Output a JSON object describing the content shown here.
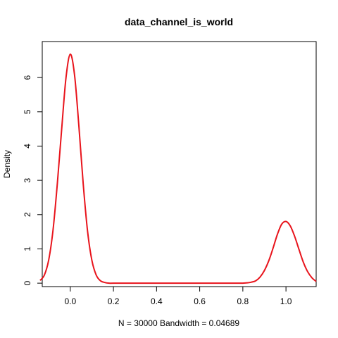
{
  "chart_data": {
    "type": "line",
    "title": "data_channel_is_world",
    "xlabel": "N = 30000   Bandwidth = 0.04689",
    "ylabel": "Density",
    "xlim": [
      -0.13,
      1.14
    ],
    "ylim": [
      -0.1,
      7.05
    ],
    "x_ticks": [
      0.0,
      0.2,
      0.4,
      0.6,
      0.8,
      1.0
    ],
    "x_tick_labels": [
      "0.0",
      "0.2",
      "0.4",
      "0.6",
      "0.8",
      "1.0"
    ],
    "y_ticks": [
      0,
      1,
      2,
      3,
      4,
      5,
      6
    ],
    "y_tick_labels": [
      "0",
      "1",
      "2",
      "3",
      "4",
      "5",
      "6"
    ],
    "grid": false,
    "series": [
      {
        "color": "#e8141c",
        "x": [
          -0.14,
          -0.12,
          -0.1,
          -0.08,
          -0.06,
          -0.04,
          -0.02,
          0.0,
          0.02,
          0.04,
          0.06,
          0.08,
          0.1,
          0.12,
          0.14,
          0.16,
          0.18,
          0.2,
          0.3,
          0.4,
          0.5,
          0.6,
          0.7,
          0.78,
          0.8,
          0.82,
          0.84,
          0.86,
          0.88,
          0.9,
          0.92,
          0.94,
          0.96,
          0.98,
          1.0,
          1.02,
          1.04,
          1.06,
          1.08,
          1.1,
          1.12,
          1.14
        ],
        "y": [
          0.08,
          0.24,
          0.68,
          1.55,
          2.91,
          4.49,
          5.99,
          6.68,
          6.06,
          4.57,
          2.89,
          1.52,
          0.67,
          0.24,
          0.07,
          0.02,
          0.0,
          0.0,
          0.0,
          0.0,
          0.0,
          0.0,
          0.0,
          0.0,
          0.0,
          0.01,
          0.03,
          0.07,
          0.18,
          0.37,
          0.65,
          1.02,
          1.42,
          1.72,
          1.8,
          1.67,
          1.37,
          0.99,
          0.62,
          0.34,
          0.16,
          0.05
        ]
      }
    ]
  }
}
